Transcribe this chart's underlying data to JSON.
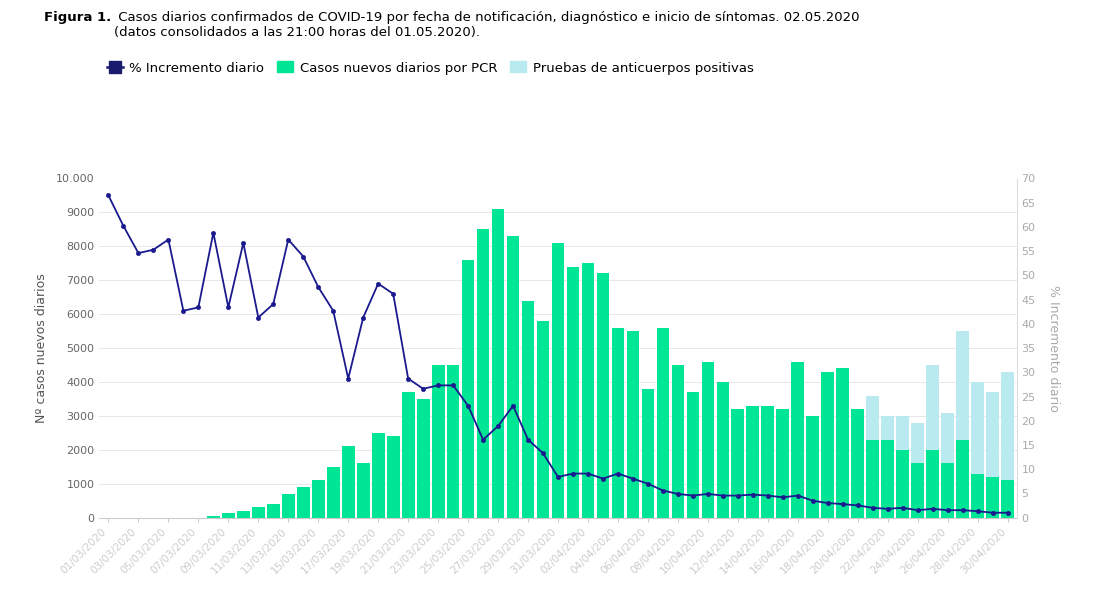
{
  "title_bold": "Figura 1.",
  "title_rest": " Casos diarios confirmados de COVID-19 por fecha de notificación, diagnóstico e inicio de síntomas. 02.05.2020\n(datos consolidados a las 21:00 horas del 01.05.2020).",
  "ylabel_left": "Nº casos nuevos diarios",
  "ylabel_right": "% Incremento diario",
  "ylim_left": [
    0,
    10000
  ],
  "ylim_right": [
    0,
    70
  ],
  "legend_labels": [
    "% Incremento diario",
    "Casos nuevos diarios por PCR",
    "Pruebas de anticuerpos positivas"
  ],
  "legend_colors": [
    "#1a1a6e",
    "#00e694",
    "#b8eaf0"
  ],
  "dates": [
    "01/03/2020",
    "02/03/2020",
    "03/03/2020",
    "04/03/2020",
    "05/03/2020",
    "06/03/2020",
    "07/03/2020",
    "08/03/2020",
    "09/03/2020",
    "10/03/2020",
    "11/03/2020",
    "12/03/2020",
    "13/03/2020",
    "14/03/2020",
    "15/03/2020",
    "16/03/2020",
    "17/03/2020",
    "18/03/2020",
    "19/03/2020",
    "20/03/2020",
    "21/03/2020",
    "22/03/2020",
    "23/03/2020",
    "24/03/2020",
    "25/03/2020",
    "26/03/2020",
    "27/03/2020",
    "28/03/2020",
    "29/03/2020",
    "30/03/2020",
    "31/03/2020",
    "01/04/2020",
    "02/04/2020",
    "03/04/2020",
    "04/04/2020",
    "05/04/2020",
    "06/04/2020",
    "07/04/2020",
    "08/04/2020",
    "09/04/2020",
    "10/04/2020",
    "11/04/2020",
    "12/04/2020",
    "13/04/2020",
    "14/04/2020",
    "15/04/2020",
    "16/04/2020",
    "17/04/2020",
    "18/04/2020",
    "19/04/2020",
    "20/04/2020",
    "21/04/2020",
    "22/04/2020",
    "23/04/2020",
    "24/04/2020",
    "25/04/2020",
    "26/04/2020",
    "27/04/2020",
    "28/04/2020",
    "29/04/2020",
    "30/04/2020"
  ],
  "pcr_bars": [
    0,
    0,
    0,
    0,
    0,
    0,
    0,
    50,
    150,
    200,
    300,
    400,
    700,
    900,
    1100,
    1500,
    2100,
    1600,
    2500,
    2400,
    3700,
    3500,
    4500,
    4500,
    7600,
    8500,
    9100,
    8300,
    6400,
    5800,
    8100,
    7400,
    7500,
    7200,
    5600,
    5500,
    3800,
    5600,
    4500,
    3700,
    4600,
    4000,
    3200,
    3300,
    3300,
    3200,
    4600,
    3000,
    4300,
    4400,
    3200,
    2300,
    2300,
    2000,
    1600,
    2000,
    1600,
    2300,
    1300,
    1200,
    1100
  ],
  "antibody_bars": [
    0,
    0,
    0,
    0,
    0,
    0,
    0,
    0,
    0,
    0,
    0,
    0,
    0,
    0,
    0,
    0,
    0,
    0,
    0,
    0,
    0,
    0,
    0,
    0,
    0,
    0,
    0,
    0,
    0,
    0,
    0,
    0,
    0,
    0,
    0,
    0,
    0,
    0,
    0,
    0,
    0,
    0,
    0,
    0,
    0,
    0,
    0,
    0,
    0,
    0,
    0,
    1300,
    700,
    1000,
    1200,
    2500,
    1500,
    3200,
    2700,
    2500,
    3200
  ],
  "pct_line_left_scale": [
    9500,
    8600,
    7800,
    7900,
    8200,
    6100,
    6200,
    8400,
    6200,
    8100,
    5900,
    6300,
    8200,
    7700,
    6800,
    6100,
    4100,
    5900,
    6900,
    6600,
    4100,
    3800,
    3900,
    3900,
    3300,
    2300,
    2700,
    3300,
    2300,
    1900,
    1200,
    1300,
    1300,
    1150,
    1300,
    1150,
    1000,
    800,
    700,
    650,
    700,
    650,
    650,
    680,
    650,
    600,
    650,
    500,
    430,
    400,
    360,
    290,
    260,
    290,
    220,
    260,
    220,
    220,
    190,
    145,
    145
  ],
  "pct_right_labels": [
    0,
    5,
    10,
    15,
    20,
    25,
    30,
    35,
    40,
    45,
    50,
    55,
    60,
    65,
    70
  ],
  "tick_dates": [
    "01/03/2020",
    "03/03/2020",
    "05/03/2020",
    "07/03/2020",
    "09/03/2020",
    "11/03/2020",
    "13/03/2020",
    "15/03/2020",
    "17/03/2020",
    "19/03/2020",
    "21/03/2020",
    "23/03/2020",
    "25/03/2020",
    "27/03/2020",
    "29/03/2020",
    "31/03/2020",
    "02/04/2020",
    "04/04/2020",
    "06/04/2020",
    "08/04/2020",
    "10/04/2020",
    "12/04/2020",
    "14/04/2020",
    "16/04/2020",
    "18/04/2020",
    "20/04/2020",
    "22/04/2020",
    "24/04/2020",
    "26/04/2020",
    "28/04/2020",
    "30/04/2020"
  ],
  "bar_color_pcr": "#00e694",
  "bar_color_antibody": "#b8eaf0",
  "line_color": "#1a1a8e",
  "background_color": "#ffffff",
  "grid_color": "#e8e8e8",
  "yticks_left": [
    0,
    1000,
    2000,
    3000,
    4000,
    5000,
    6000,
    7000,
    8000,
    9000,
    10000
  ],
  "ytick_labels_left": [
    "0",
    "1000",
    "2000",
    "3000",
    "4000",
    "5000",
    "6000",
    "7000",
    "8000",
    "9000",
    "10.000"
  ]
}
